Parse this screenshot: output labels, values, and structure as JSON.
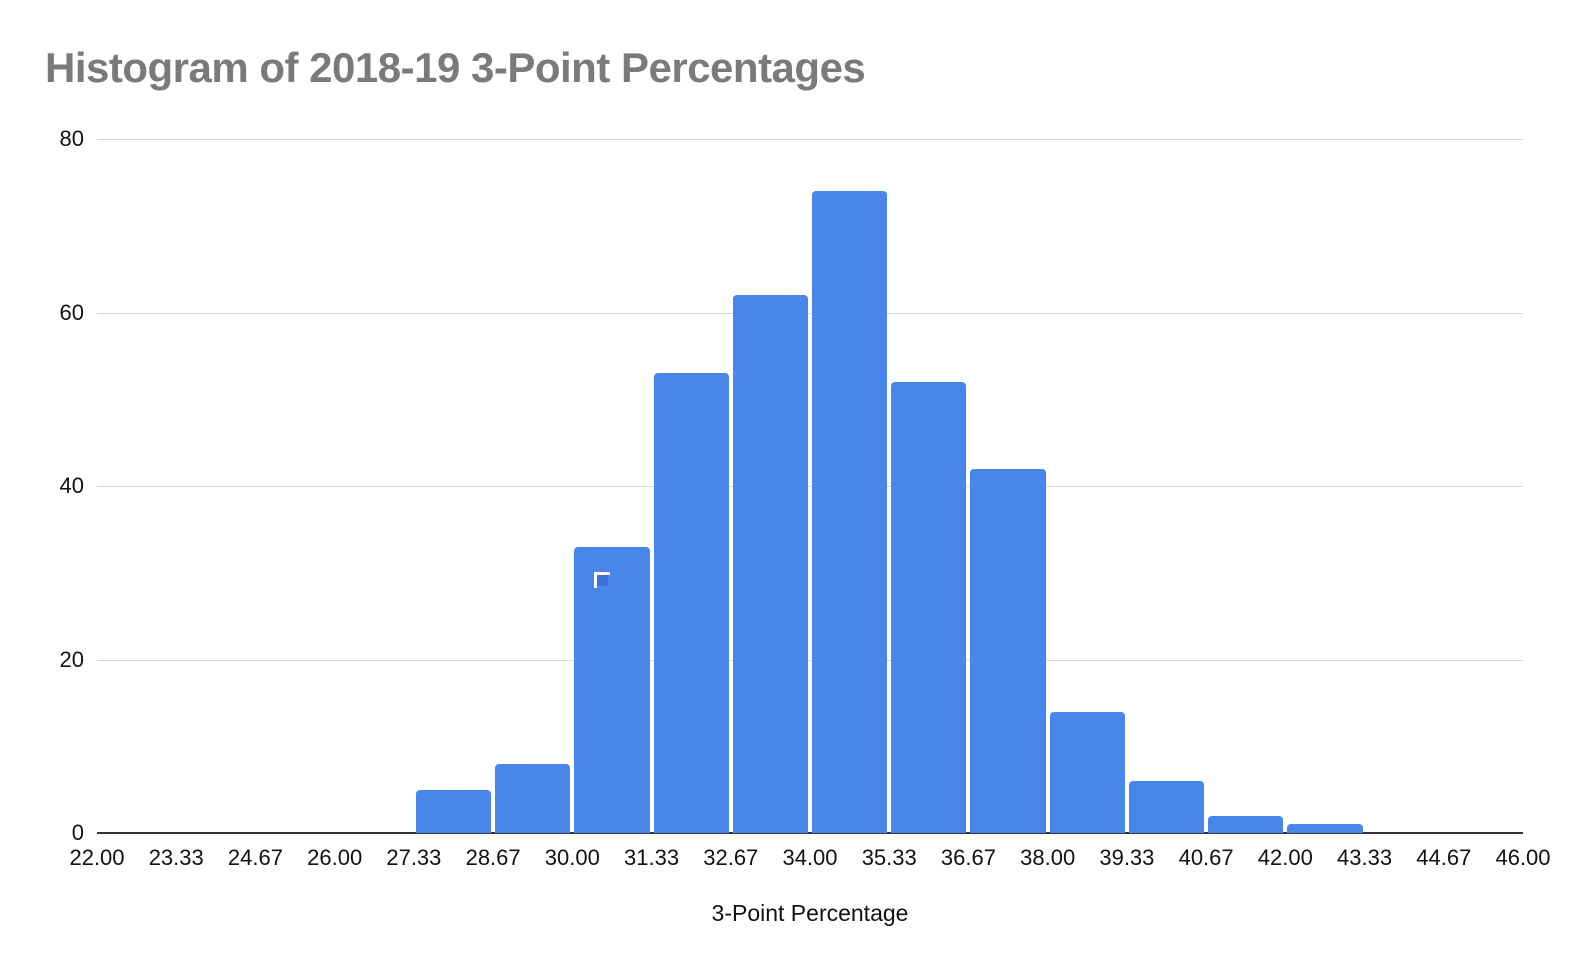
{
  "chart_data": {
    "type": "bar",
    "subtype": "histogram",
    "title": "Histogram of 2018-19 3-Point Percentages",
    "xlabel": "3-Point Percentage",
    "ylabel": "",
    "x_tick_labels": [
      "22.00",
      "23.33",
      "24.67",
      "26.00",
      "27.33",
      "28.67",
      "30.00",
      "31.33",
      "32.67",
      "34.00",
      "35.33",
      "36.67",
      "38.00",
      "39.33",
      "40.67",
      "42.00",
      "43.33",
      "44.67",
      "46.00"
    ],
    "bin_edges": [
      22.0,
      23.33,
      24.67,
      26.0,
      27.33,
      28.67,
      30.0,
      31.33,
      32.67,
      34.0,
      35.33,
      36.67,
      38.0,
      39.33,
      40.67,
      42.0,
      43.33,
      44.67,
      46.0
    ],
    "counts": [
      0,
      0,
      0,
      0,
      5,
      8,
      33,
      53,
      62,
      74,
      52,
      42,
      14,
      6,
      2,
      1,
      0,
      0
    ],
    "y_tick_labels": [
      "0",
      "20",
      "40",
      "60",
      "80"
    ],
    "yticks": [
      0,
      20,
      40,
      60,
      80
    ],
    "ylim": [
      0,
      80
    ],
    "grid": "horizontal",
    "legend": "none"
  },
  "colors": {
    "bar": "#4886ec",
    "title": "#7a7a7a",
    "axis_text": "#111111",
    "gridline": "#d9d9d9",
    "baseline": "#333333",
    "cursor_stroke": "#ffffff",
    "cursor_inner": "#3a74da"
  },
  "icons": {
    "cursor": "selection-corner-cursor"
  }
}
